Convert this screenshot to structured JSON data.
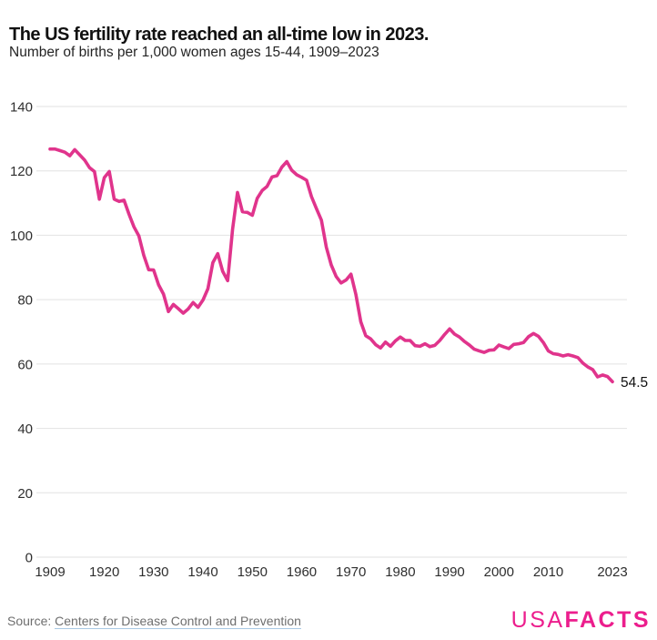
{
  "header": {
    "title": "The US fertility rate reached an all-time low in 2023.",
    "subtitle": "Number of births per 1,000 women ages 15-44, 1909–2023"
  },
  "chart_data": {
    "type": "line",
    "title": "The US fertility rate reached an all-time low in 2023.",
    "subtitle": "Number of births per 1,000 women ages 15-44, 1909–2023",
    "xlabel": "",
    "ylabel": "Number of births per 1,000 women ages 15-44",
    "ylim": [
      0,
      140
    ],
    "yticks": [
      0,
      20,
      40,
      60,
      80,
      100,
      120,
      140
    ],
    "xticks": [
      1909,
      1920,
      1930,
      1940,
      1950,
      1960,
      1970,
      1980,
      1990,
      2000,
      2010,
      2023
    ],
    "grid": "horizontal",
    "legend": "none",
    "line_color": "#E0348C",
    "end_label": "54.5",
    "series_name": "US fertility rate (births per 1,000 women ages 15-44)",
    "x": [
      1909,
      1910,
      1911,
      1912,
      1913,
      1914,
      1915,
      1916,
      1917,
      1918,
      1919,
      1920,
      1921,
      1922,
      1923,
      1924,
      1925,
      1926,
      1927,
      1928,
      1929,
      1930,
      1931,
      1932,
      1933,
      1934,
      1935,
      1936,
      1937,
      1938,
      1939,
      1940,
      1941,
      1942,
      1943,
      1944,
      1945,
      1946,
      1947,
      1948,
      1949,
      1950,
      1951,
      1952,
      1953,
      1954,
      1955,
      1956,
      1957,
      1958,
      1959,
      1960,
      1961,
      1962,
      1963,
      1964,
      1965,
      1966,
      1967,
      1968,
      1969,
      1970,
      1971,
      1972,
      1973,
      1974,
      1975,
      1976,
      1977,
      1978,
      1979,
      1980,
      1981,
      1982,
      1983,
      1984,
      1985,
      1986,
      1987,
      1988,
      1989,
      1990,
      1991,
      1992,
      1993,
      1994,
      1995,
      1996,
      1997,
      1998,
      1999,
      2000,
      2001,
      2002,
      2003,
      2004,
      2005,
      2006,
      2007,
      2008,
      2009,
      2010,
      2011,
      2012,
      2013,
      2014,
      2015,
      2016,
      2017,
      2018,
      2019,
      2020,
      2021,
      2022,
      2023
    ],
    "values": [
      126.8,
      126.8,
      126.3,
      125.8,
      124.7,
      126.6,
      125.0,
      123.4,
      121.0,
      119.8,
      111.2,
      117.9,
      119.8,
      111.2,
      110.5,
      110.9,
      106.6,
      102.6,
      99.8,
      93.8,
      89.3,
      89.2,
      84.6,
      81.7,
      76.3,
      78.5,
      77.2,
      75.8,
      77.1,
      79.1,
      77.6,
      79.9,
      83.4,
      91.5,
      94.3,
      88.8,
      85.9,
      101.9,
      113.3,
      107.3,
      107.1,
      106.2,
      111.5,
      113.9,
      115.2,
      118.1,
      118.5,
      121.2,
      122.9,
      120.2,
      118.8,
      118.0,
      117.1,
      112.0,
      108.3,
      104.7,
      96.3,
      90.8,
      87.2,
      85.2,
      86.1,
      87.9,
      81.6,
      73.1,
      68.8,
      67.8,
      66.0,
      65.0,
      66.8,
      65.5,
      67.2,
      68.4,
      67.3,
      67.3,
      65.7,
      65.5,
      66.3,
      65.4,
      65.8,
      67.3,
      69.2,
      70.9,
      69.3,
      68.4,
      67.0,
      65.9,
      64.6,
      64.1,
      63.6,
      64.3,
      64.4,
      65.9,
      65.3,
      64.8,
      66.1,
      66.3,
      66.7,
      68.5,
      69.5,
      68.6,
      66.7,
      64.1,
      63.2,
      63.0,
      62.5,
      62.9,
      62.5,
      62.0,
      60.3,
      59.1,
      58.3,
      56.0,
      56.6,
      56.1,
      54.5
    ]
  },
  "footer": {
    "source_prefix": "Source: ",
    "source_link": "Centers for Disease Control and Prevention",
    "logo": {
      "usa": "USA",
      "facts": "FACTS",
      "color": "#EC1E8D"
    }
  }
}
